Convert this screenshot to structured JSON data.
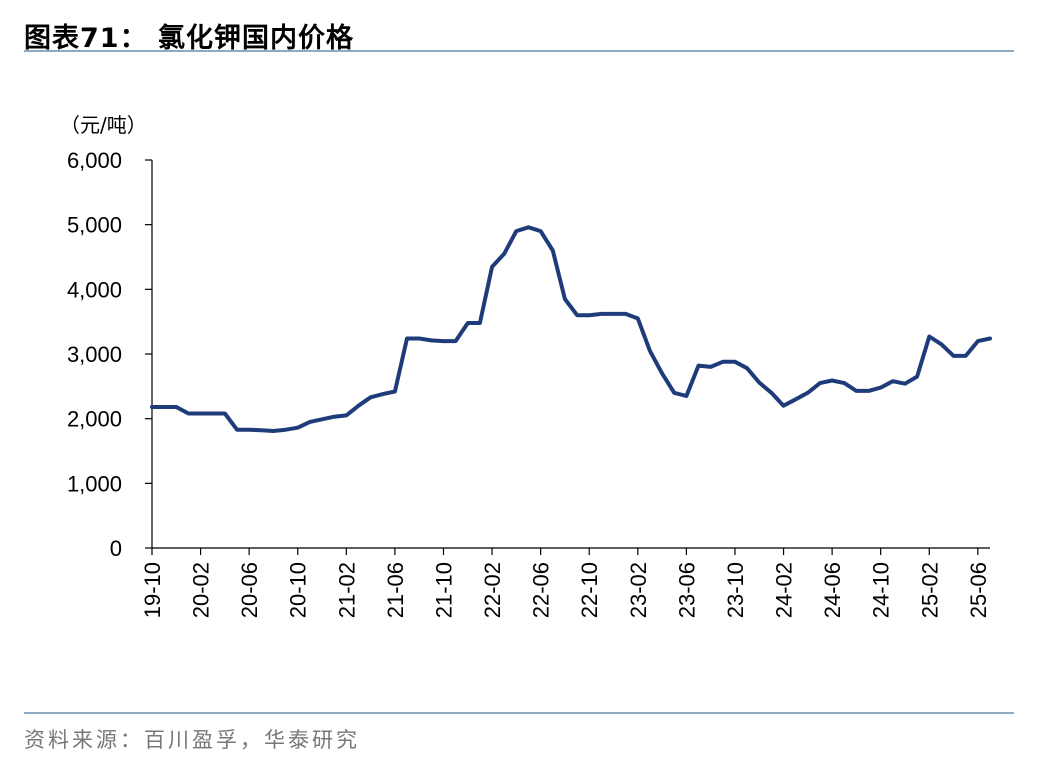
{
  "figure": {
    "title": "图表71：  氯化钾国内价格",
    "source": "资料来源：百川盈孚，华泰研究"
  },
  "chart_data": {
    "type": "line",
    "ylabel": "（元/吨）",
    "ylim": [
      0,
      6000
    ],
    "yticks": [
      "0",
      "1,000",
      "2,000",
      "3,000",
      "4,000",
      "5,000",
      "6,000"
    ],
    "xticks": [
      "19-10",
      "20-02",
      "20-06",
      "20-10",
      "21-02",
      "21-06",
      "21-10",
      "22-02",
      "22-06",
      "22-10",
      "23-02",
      "23-06",
      "23-10",
      "24-02",
      "24-06",
      "24-10",
      "25-02",
      "25-06"
    ],
    "xrange": [
      "2019-10",
      "2025-07"
    ],
    "grid": false,
    "legend": "none",
    "color": "#1f3c7a",
    "series": [
      {
        "x": [
          "2019-10",
          "2019-11",
          "2019-12",
          "2020-01",
          "2020-02",
          "2020-03",
          "2020-04",
          "2020-05",
          "2020-06",
          "2020-07",
          "2020-08",
          "2020-09",
          "2020-10",
          "2020-11",
          "2020-12",
          "2021-01",
          "2021-02",
          "2021-03",
          "2021-04",
          "2021-05",
          "2021-06",
          "2021-07",
          "2021-08",
          "2021-09",
          "2021-10",
          "2021-11",
          "2021-12",
          "2022-01",
          "2022-02",
          "2022-03",
          "2022-04",
          "2022-05",
          "2022-06",
          "2022-07",
          "2022-08",
          "2022-09",
          "2022-10",
          "2022-11",
          "2022-12",
          "2023-01",
          "2023-02",
          "2023-03",
          "2023-04",
          "2023-05",
          "2023-06",
          "2023-07",
          "2023-08",
          "2023-09",
          "2023-10",
          "2023-11",
          "2023-12",
          "2024-01",
          "2024-02",
          "2024-03",
          "2024-04",
          "2024-05",
          "2024-06",
          "2024-07",
          "2024-08",
          "2024-09",
          "2024-10",
          "2024-11",
          "2024-12",
          "2025-01",
          "2025-02",
          "2025-03",
          "2025-04",
          "2025-05",
          "2025-06",
          "2025-07"
        ],
        "values": [
          2180,
          2180,
          2180,
          2080,
          2080,
          2080,
          2080,
          1830,
          1830,
          1820,
          1810,
          1830,
          1860,
          1950,
          1990,
          2030,
          2050,
          2200,
          2330,
          2380,
          2420,
          3240,
          3240,
          3210,
          3200,
          3200,
          3480,
          3480,
          4350,
          4550,
          4900,
          4960,
          4900,
          4600,
          3850,
          3600,
          3600,
          3620,
          3620,
          3620,
          3550,
          3050,
          2700,
          2400,
          2350,
          2820,
          2800,
          2880,
          2880,
          2780,
          2560,
          2400,
          2200,
          2300,
          2400,
          2550,
          2590,
          2550,
          2430,
          2430,
          2480,
          2580,
          2540,
          2650,
          3270,
          3150,
          2970,
          2970,
          3200,
          3240
        ]
      }
    ]
  }
}
